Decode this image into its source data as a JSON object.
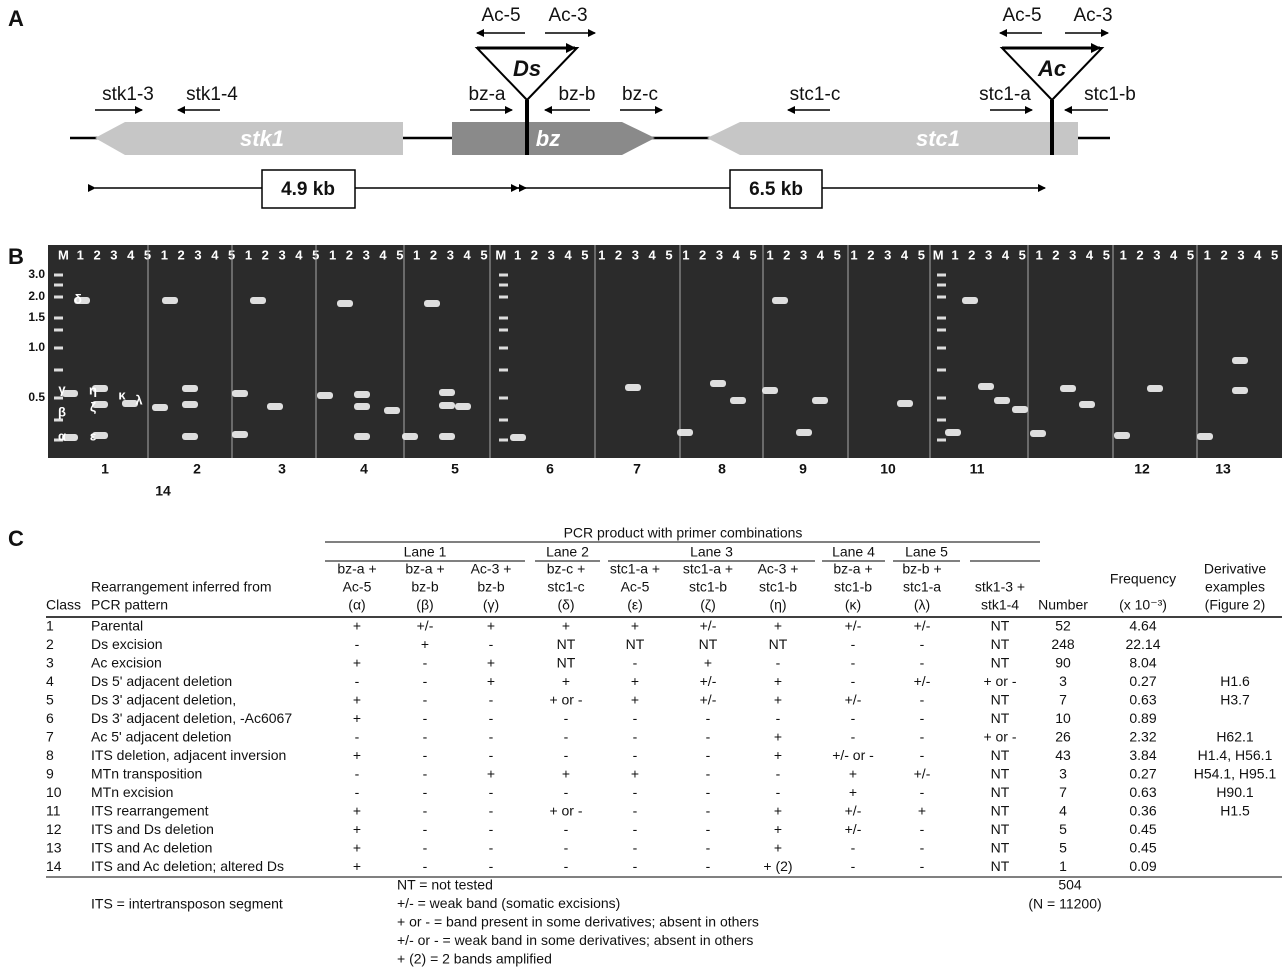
{
  "panels": {
    "a": "A",
    "b": "B",
    "c": "C"
  },
  "diagram": {
    "genes": {
      "stk1": "stk1",
      "bz": "bz",
      "stc1": "stc1"
    },
    "transposons": {
      "ds": "Ds",
      "ac": "Ac"
    },
    "primers": {
      "ds_ac5": "Ac-5",
      "ds_ac3": "Ac-3",
      "ac_ac5": "Ac-5",
      "ac_ac3": "Ac-3",
      "stk1_3": "stk1-3",
      "stk1_4": "stk1-4",
      "bz_a": "bz-a",
      "bz_b": "bz-b",
      "bz_c": "bz-c",
      "stc1_c": "stc1-c",
      "stc1_a": "stc1-a",
      "stc1_b": "stc1-b"
    },
    "distances": [
      "4.9 kb",
      "6.5 kb"
    ]
  },
  "gel": {
    "sizes": [
      "3.0",
      "2.0",
      "1.5",
      "1.0",
      "0.5"
    ],
    "lane_labels": [
      "M",
      "1",
      "2",
      "3",
      "4",
      "5",
      "1",
      "2",
      "3",
      "4",
      "5",
      "1",
      "2",
      "3",
      "4",
      "5",
      "1",
      "2",
      "3",
      "4",
      "5",
      "1",
      "2",
      "3",
      "4",
      "5",
      "M",
      "1",
      "2",
      "3",
      "4",
      "5",
      "1",
      "2",
      "3",
      "4",
      "5",
      "1",
      "2",
      "3",
      "4",
      "5",
      "1",
      "2",
      "3",
      "4",
      "5",
      "1",
      "2",
      "3",
      "4",
      "5",
      "M",
      "1",
      "2",
      "3",
      "4",
      "5",
      "1",
      "2",
      "3",
      "4",
      "5",
      "1",
      "2",
      "3",
      "4",
      "5",
      "1",
      "2",
      "3",
      "4",
      "5"
    ],
    "band_labels": [
      "δ",
      "γ",
      "η",
      "κ",
      "λ",
      "β",
      "ζ",
      "α",
      "ε"
    ],
    "classes": [
      "1",
      "2",
      "3",
      "4",
      "5",
      "6",
      "7",
      "8",
      "9",
      "10",
      "11",
      "12",
      "13",
      "14"
    ]
  },
  "table": {
    "title": "PCR product with primer combinations",
    "lanes": [
      "Lane 1",
      "Lane 2",
      "Lane 3",
      "Lane 4",
      "Lane 5"
    ],
    "head": {
      "class": "Class",
      "rearrangement": [
        "Rearrangement inferred from",
        "PCR pattern"
      ],
      "primers": [
        [
          "bz-a +",
          "Ac-5",
          "(α)"
        ],
        [
          "bz-a +",
          "bz-b",
          "(β)"
        ],
        [
          "Ac-3 +",
          "bz-b",
          "(γ)"
        ],
        [
          "bz-c +",
          "stc1-c",
          "(δ)"
        ],
        [
          "stc1-a +",
          "Ac-5",
          "(ε)"
        ],
        [
          "stc1-a +",
          "stc1-b",
          "(ζ)"
        ],
        [
          "Ac-3 +",
          "stc1-b",
          "(η)"
        ],
        [
          "bz-a +",
          "stc1-b",
          "(κ)"
        ],
        [
          "bz-b +",
          "stc1-a",
          "(λ)"
        ]
      ],
      "stk": [
        "stk1-3 +",
        "stk1-4"
      ],
      "number": "Number",
      "frequency": [
        "Frequency",
        "(x 10⁻³)"
      ],
      "derivatives": [
        "Derivative",
        "examples",
        "(Figure 2)"
      ]
    },
    "rows": [
      {
        "class": 1,
        "rearrangement": "Parental",
        "pcr": [
          "+",
          "+/-",
          "+",
          "+",
          "+",
          "+/-",
          "+",
          "+/-",
          "+/-"
        ],
        "stk": "NT",
        "number": 52,
        "frequency": 4.64,
        "derivatives": null
      },
      {
        "class": 2,
        "rearrangement": "Ds excision",
        "pcr": [
          "-",
          "+",
          "-",
          "NT",
          "NT",
          "NT",
          "NT",
          "-",
          "-"
        ],
        "stk": "NT",
        "number": 248,
        "frequency": 22.14,
        "derivatives": null
      },
      {
        "class": 3,
        "rearrangement": "Ac excision",
        "pcr": [
          "+",
          "-",
          "+",
          "NT",
          "-",
          "+",
          "-",
          "-",
          "-"
        ],
        "stk": "NT",
        "number": 90,
        "frequency": 8.04,
        "derivatives": null
      },
      {
        "class": 4,
        "rearrangement": "Ds 5' adjacent deletion",
        "pcr": [
          "-",
          "-",
          "+",
          "+",
          "+",
          "+/-",
          "+",
          "-",
          "+/-"
        ],
        "stk": "+ or -",
        "number": 3,
        "frequency": 0.27,
        "derivatives": "H1.6"
      },
      {
        "class": 5,
        "rearrangement": "Ds 3' adjacent deletion,",
        "pcr": [
          "+",
          "-",
          "-",
          "+ or -",
          "+",
          "+/-",
          "+",
          "+/-",
          "-"
        ],
        "stk": "NT",
        "number": 7,
        "frequency": 0.63,
        "derivatives": "H3.7"
      },
      {
        "class": 6,
        "rearrangement": "Ds 3' adjacent deletion, -Ac6067",
        "pcr": [
          "+",
          "-",
          "-",
          "-",
          "-",
          "-",
          "-",
          "-",
          "-"
        ],
        "stk": "NT",
        "number": 10,
        "frequency": 0.89,
        "derivatives": null
      },
      {
        "class": 7,
        "rearrangement": "Ac 5' adjacent deletion",
        "pcr": [
          "-",
          "-",
          "-",
          "-",
          "-",
          "-",
          "+",
          "-",
          "-"
        ],
        "stk": "+ or -",
        "number": 26,
        "frequency": 2.32,
        "derivatives": "H62.1"
      },
      {
        "class": 8,
        "rearrangement": "ITS deletion, adjacent inversion",
        "pcr": [
          "+",
          "-",
          "-",
          "-",
          "-",
          "-",
          "+",
          "+/- or -",
          "-"
        ],
        "stk": "NT",
        "number": 43,
        "frequency": 3.84,
        "derivatives": "H1.4, H56.1"
      },
      {
        "class": 9,
        "rearrangement": "MTn transposition",
        "pcr": [
          "-",
          "-",
          "+",
          "+",
          "+",
          "-",
          "-",
          "+",
          "+/-"
        ],
        "stk": "NT",
        "number": 3,
        "frequency": 0.27,
        "derivatives": "H54.1, H95.1"
      },
      {
        "class": 10,
        "rearrangement": "MTn excision",
        "pcr": [
          "-",
          "-",
          "-",
          "-",
          "-",
          "-",
          "-",
          "+",
          "-"
        ],
        "stk": "NT",
        "number": 7,
        "frequency": 0.63,
        "derivatives": "H90.1"
      },
      {
        "class": 11,
        "rearrangement": "ITS rearrangement",
        "pcr": [
          "+",
          "-",
          "-",
          "+ or -",
          "-",
          "-",
          "+",
          "+/-",
          "+"
        ],
        "stk": "NT",
        "number": 4,
        "frequency": 0.36,
        "derivatives": "H1.5"
      },
      {
        "class": 12,
        "rearrangement": "ITS and Ds deletion",
        "pcr": [
          "+",
          "-",
          "-",
          "-",
          "-",
          "-",
          "+",
          "+/-",
          "-"
        ],
        "stk": "NT",
        "number": 5,
        "frequency": 0.45,
        "derivatives": null
      },
      {
        "class": 13,
        "rearrangement": "ITS and Ac deletion",
        "pcr": [
          "+",
          "-",
          "-",
          "-",
          "-",
          "-",
          "+",
          "-",
          "-"
        ],
        "stk": "NT",
        "number": 5,
        "frequency": 0.45,
        "derivatives": null
      },
      {
        "class": 14,
        "rearrangement": "ITS and Ac deletion; altered Ds",
        "pcr": [
          "+",
          "-",
          "-",
          "-",
          "-",
          "-",
          "+ (2)",
          "-",
          "-"
        ],
        "stk": "NT",
        "number": 1,
        "frequency": 0.09,
        "derivatives": null
      }
    ],
    "total": 504,
    "total_n": "(N = 11200)",
    "notes_left": [
      "ITS = intertransposon segment"
    ],
    "notes": [
      "NT = not tested",
      "+/- = weak band (somatic excisions)",
      "+ or - = band present in some derivatives; absent in others",
      "+/- or - = weak band in some derivatives; absent in others",
      "+ (2) = 2 bands amplified"
    ]
  }
}
